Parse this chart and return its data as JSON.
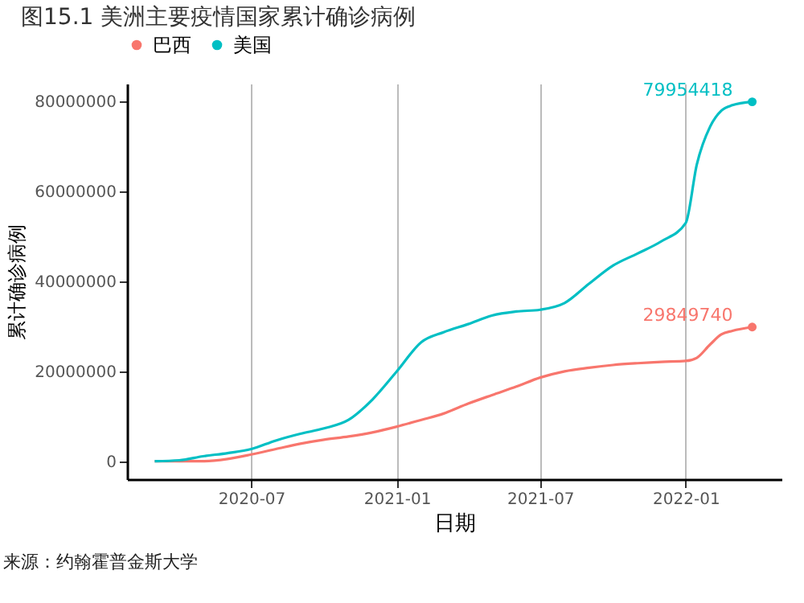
{
  "chart_data": {
    "type": "line",
    "title": "图15.1 美洲主要疫情国家累计确诊病例",
    "xlabel": "日期",
    "ylabel": "累计确诊病例",
    "x": [
      "2020-03-01",
      "2020-04-01",
      "2020-05-01",
      "2020-06-01",
      "2020-07-01",
      "2020-08-01",
      "2020-09-01",
      "2020-10-01",
      "2020-11-01",
      "2020-12-01",
      "2021-01-01",
      "2021-02-01",
      "2021-03-01",
      "2021-04-01",
      "2021-05-01",
      "2021-06-01",
      "2021-07-01",
      "2021-08-01",
      "2021-09-01",
      "2021-10-01",
      "2021-11-01",
      "2021-12-01",
      "2022-01-01",
      "2022-01-15",
      "2022-02-01",
      "2022-02-15",
      "2022-03-01",
      "2022-03-26"
    ],
    "series": [
      {
        "name": "巴西",
        "color": "#f8766d",
        "values": [
          0,
          0,
          0,
          500000,
          1500000,
          2700000,
          3900000,
          4800000,
          5500000,
          6400000,
          7700000,
          9200000,
          10600000,
          12800000,
          14700000,
          16600000,
          18600000,
          20000000,
          20800000,
          21400000,
          21800000,
          22100000,
          22300000,
          23000000,
          26000000,
          28200000,
          29000000,
          29849740
        ],
        "value_labels": [
          null,
          null,
          null,
          null,
          null,
          null,
          null,
          null,
          null,
          null,
          null,
          null,
          null,
          null,
          null,
          null,
          null,
          null,
          null,
          null,
          null,
          null,
          null,
          null,
          null,
          null,
          null,
          "29849740"
        ]
      },
      {
        "name": "美国",
        "color": "#00bfc4",
        "values": [
          0,
          200000,
          1100000,
          1800000,
          2700000,
          4600000,
          6100000,
          7300000,
          9200000,
          13700000,
          20000000,
          26500000,
          28700000,
          30500000,
          32400000,
          33300000,
          33700000,
          35200000,
          39500000,
          43500000,
          46200000,
          48900000,
          53000000,
          66000000,
          74500000,
          78000000,
          79200000,
          79954418
        ],
        "value_labels": [
          null,
          null,
          null,
          null,
          null,
          null,
          null,
          null,
          null,
          null,
          null,
          null,
          null,
          null,
          null,
          null,
          null,
          null,
          null,
          null,
          null,
          null,
          null,
          null,
          null,
          null,
          null,
          "79954418"
        ]
      }
    ],
    "xlim": [
      "2020-01-26",
      "2022-05-02"
    ],
    "xticks": [
      "2020-07",
      "2021-01",
      "2021-07",
      "2022-01"
    ],
    "ylim": [
      -4000000,
      84000000
    ],
    "yticks": [
      0,
      20000000,
      40000000,
      60000000,
      80000000
    ],
    "grid": "x",
    "legend": "top",
    "annotations": [
      "来源：约翰霍普金斯大学"
    ]
  }
}
